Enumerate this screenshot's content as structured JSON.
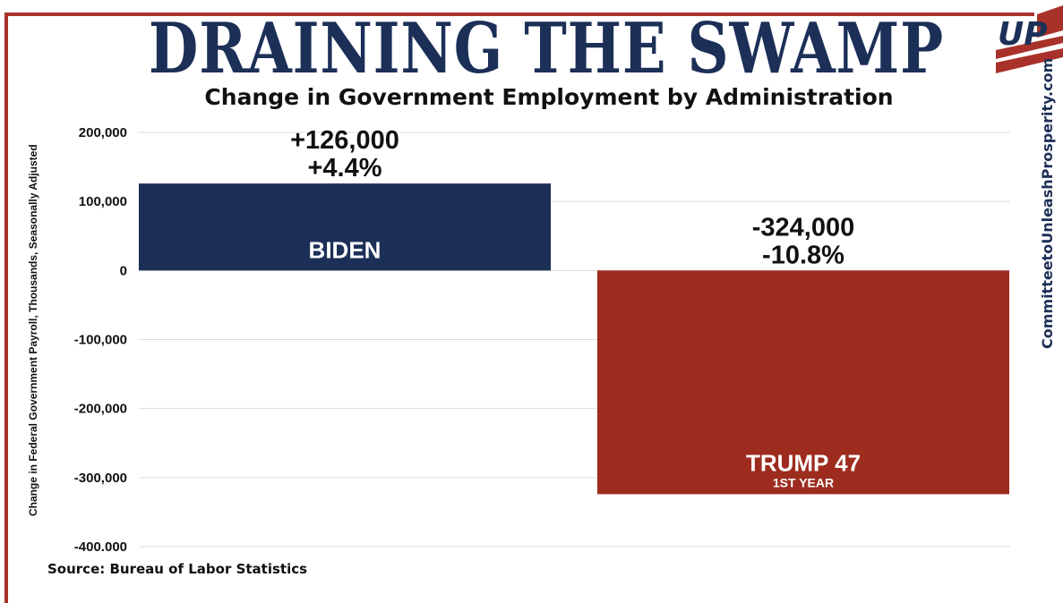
{
  "headline": "DRAINING THE SWAMP",
  "source": "Source: Bureau of Labor Statistics",
  "website": "CommitteetoUnleashProsperity.com",
  "logo_text": "UP",
  "colors": {
    "navy": "#1c2f57",
    "red": "#9d2c1f",
    "frame": "#a8322a"
  },
  "chart_data": {
    "type": "bar",
    "title": "Change in Government Employment by Administration",
    "ylabel": "Change in Federal Government Payroll, Thousands, Seasonally Adjusted",
    "ylim": [
      -400000,
      200000
    ],
    "yticks": [
      200000,
      100000,
      0,
      -100000,
      -200000,
      -300000,
      -400000
    ],
    "ytick_labels": [
      "200,000",
      "100,000",
      "0",
      "-100,000",
      "-200,000",
      "-300,000",
      "-400.000"
    ],
    "grid": true,
    "bars": [
      {
        "category": "BIDEN",
        "sublabel": "",
        "value": 126000,
        "label_value": "+126,000",
        "label_pct": "+4.4%",
        "color": "#1c2f57"
      },
      {
        "category": "TRUMP 47",
        "sublabel": "1ST YEAR",
        "value": -324000,
        "label_value": "-324,000",
        "label_pct": "-10.8%",
        "color": "#9d2c1f"
      }
    ]
  }
}
